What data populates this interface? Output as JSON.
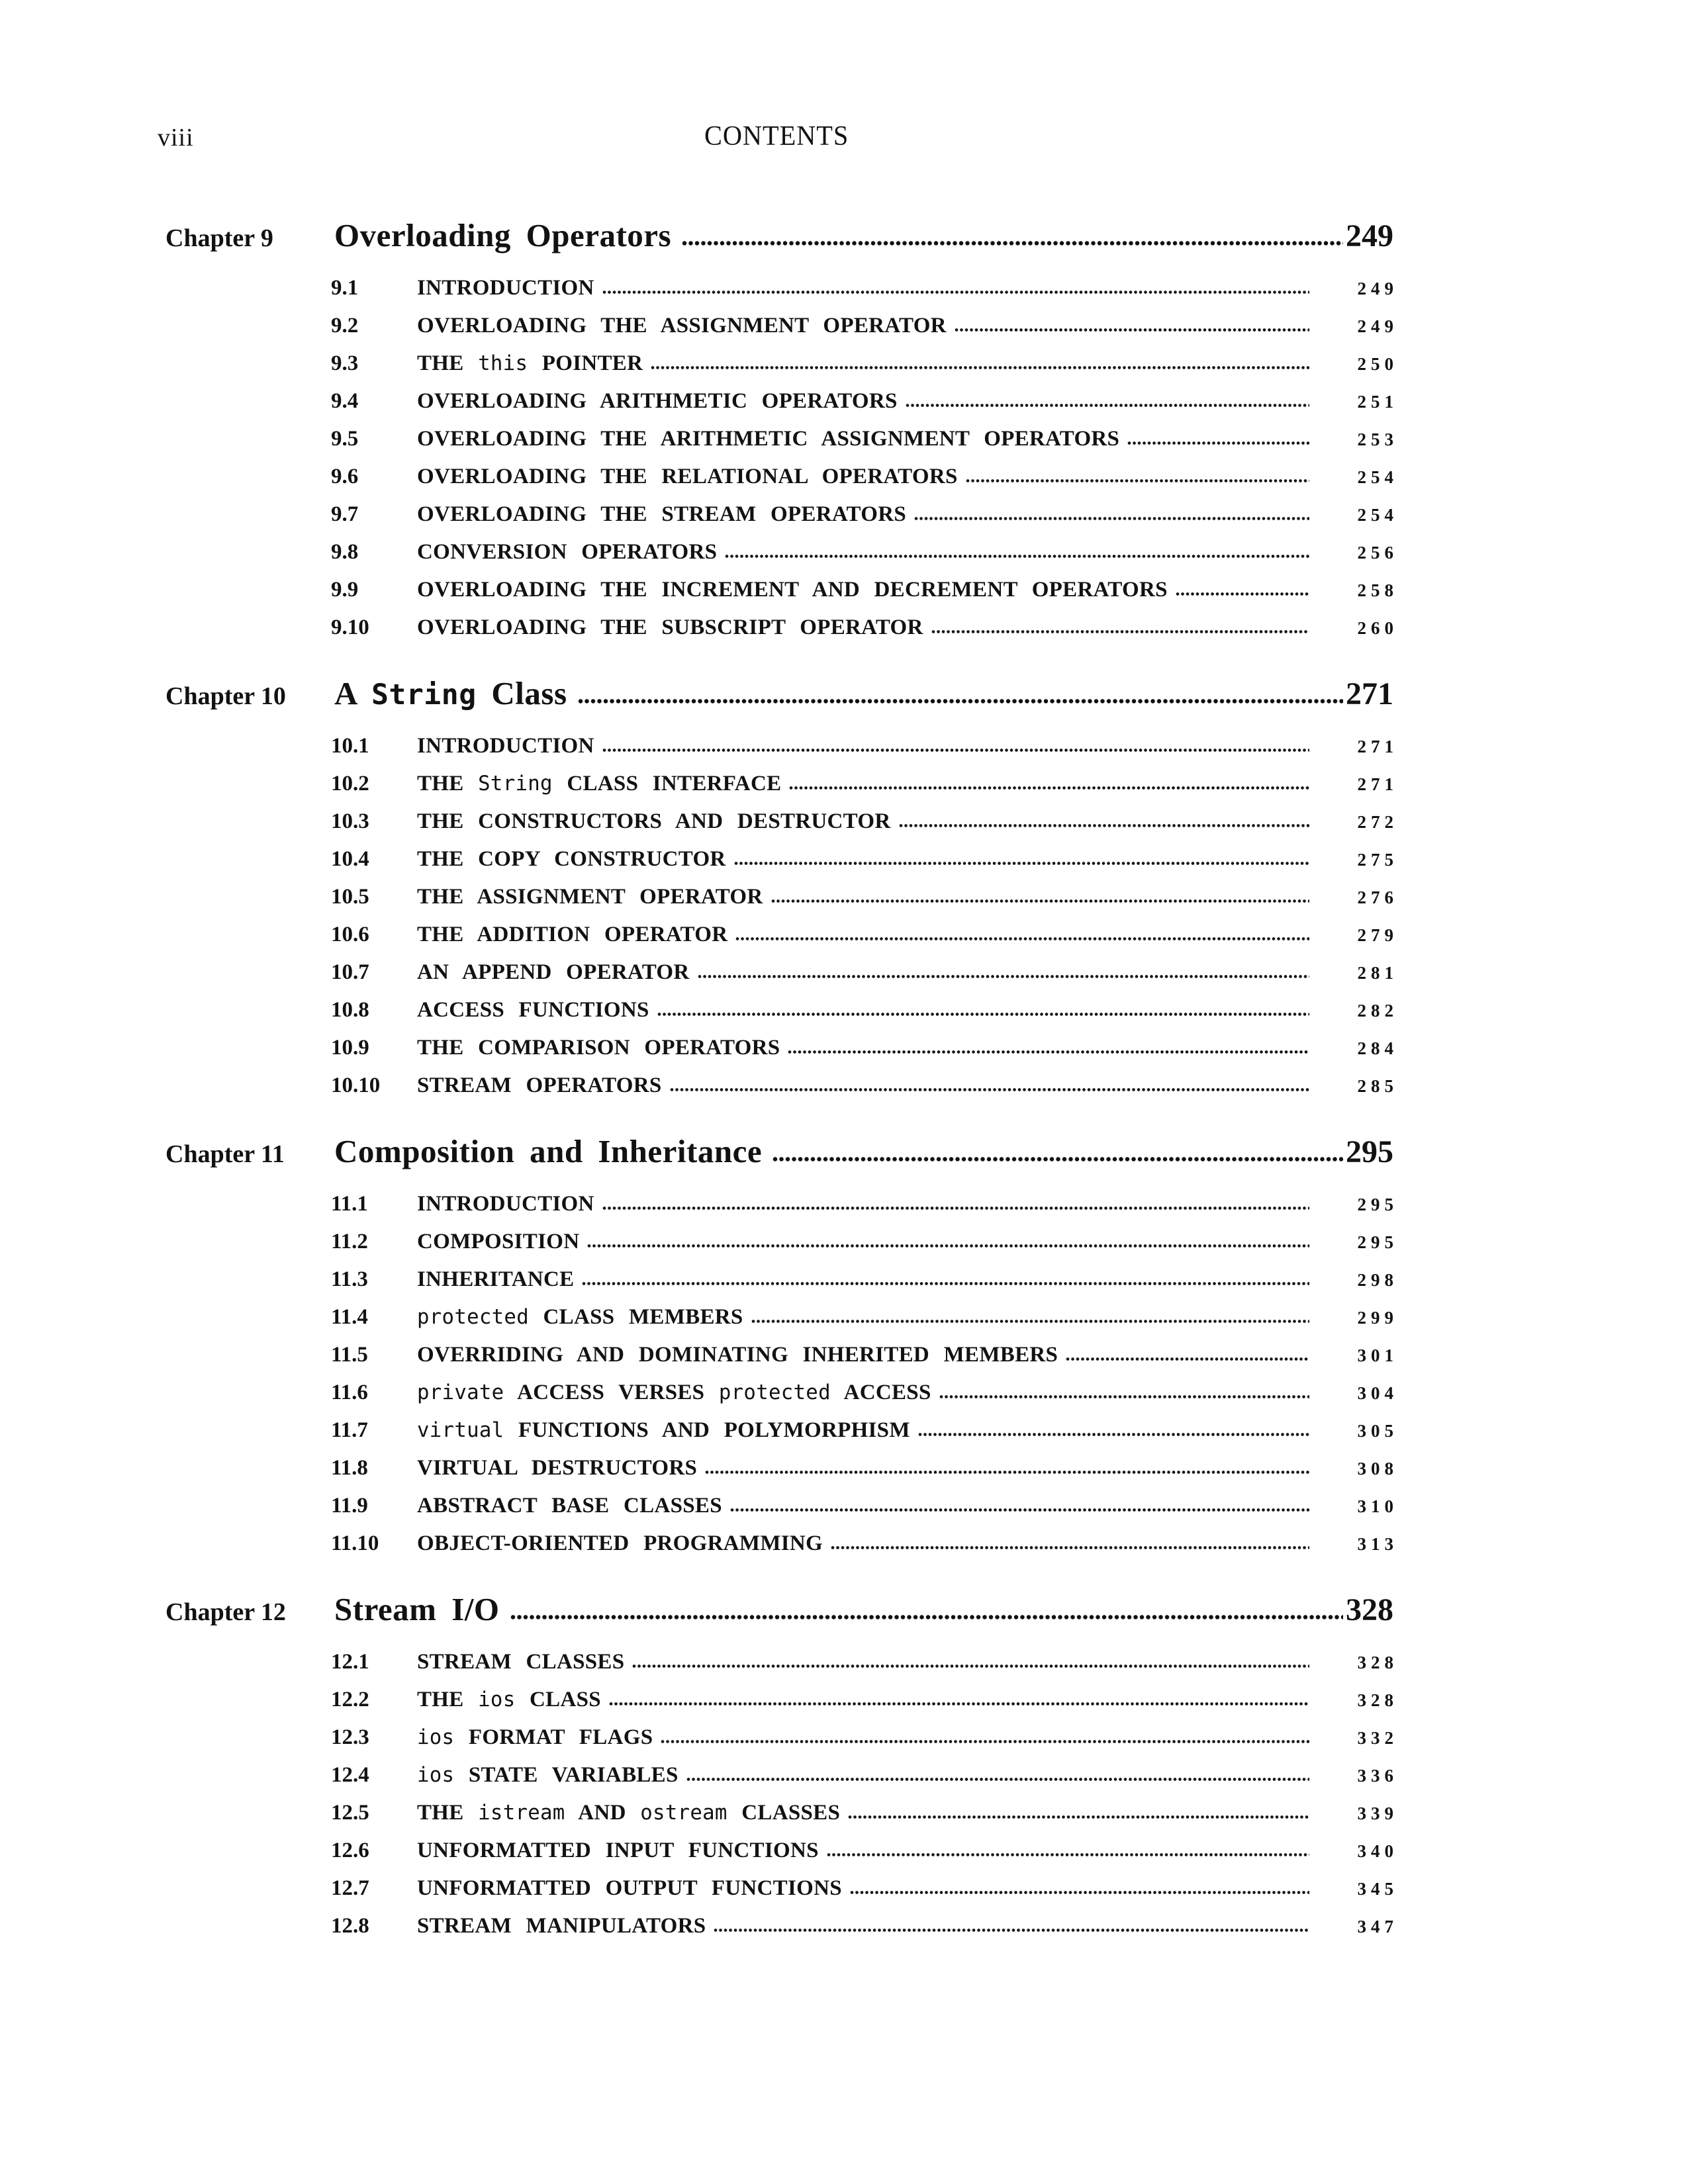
{
  "page": {
    "folio": "viii",
    "running_head": "CONTENTS"
  },
  "chapters": [
    {
      "label": "Chapter 9",
      "title_parts": [
        {
          "t": "Overloading Operators",
          "m": false
        }
      ],
      "page": "249",
      "sections": [
        {
          "num": "9.1",
          "parts": [
            {
              "t": "INTRODUCTION",
              "m": false
            }
          ],
          "page": "249"
        },
        {
          "num": "9.2",
          "parts": [
            {
              "t": "OVERLOADING THE ASSIGNMENT OPERATOR",
              "m": false
            }
          ],
          "page": "249"
        },
        {
          "num": "9.3",
          "parts": [
            {
              "t": "THE ",
              "m": false
            },
            {
              "t": "this",
              "m": true
            },
            {
              "t": " POINTER",
              "m": false
            }
          ],
          "page": "250"
        },
        {
          "num": "9.4",
          "parts": [
            {
              "t": "OVERLOADING ARITHMETIC OPERATORS",
              "m": false
            }
          ],
          "page": "251"
        },
        {
          "num": "9.5",
          "parts": [
            {
              "t": "OVERLOADING THE ARITHMETIC ASSIGNMENT OPERATORS",
              "m": false
            }
          ],
          "page": "253"
        },
        {
          "num": "9.6",
          "parts": [
            {
              "t": "OVERLOADING THE RELATIONAL OPERATORS",
              "m": false
            }
          ],
          "page": "254"
        },
        {
          "num": "9.7",
          "parts": [
            {
              "t": "OVERLOADING THE STREAM OPERATORS",
              "m": false
            }
          ],
          "page": "254"
        },
        {
          "num": "9.8",
          "parts": [
            {
              "t": "CONVERSION OPERATORS",
              "m": false
            }
          ],
          "page": "256"
        },
        {
          "num": "9.9",
          "parts": [
            {
              "t": "OVERLOADING THE INCREMENT AND DECREMENT OPERATORS",
              "m": false
            }
          ],
          "page": "258"
        },
        {
          "num": "9.10",
          "parts": [
            {
              "t": "OVERLOADING THE SUBSCRIPT OPERATOR",
              "m": false
            }
          ],
          "page": "260"
        }
      ]
    },
    {
      "label": "Chapter 10",
      "title_parts": [
        {
          "t": "A ",
          "m": false
        },
        {
          "t": "String",
          "m": true
        },
        {
          "t": " Class",
          "m": false
        }
      ],
      "page": "271",
      "sections": [
        {
          "num": "10.1",
          "parts": [
            {
              "t": "INTRODUCTION",
              "m": false
            }
          ],
          "page": "271"
        },
        {
          "num": "10.2",
          "parts": [
            {
              "t": "THE ",
              "m": false
            },
            {
              "t": "String",
              "m": true
            },
            {
              "t": " CLASS INTERFACE",
              "m": false
            }
          ],
          "page": "271"
        },
        {
          "num": "10.3",
          "parts": [
            {
              "t": "THE CONSTRUCTORS AND DESTRUCTOR",
              "m": false
            }
          ],
          "page": "272"
        },
        {
          "num": "10.4",
          "parts": [
            {
              "t": "THE COPY CONSTRUCTOR",
              "m": false
            }
          ],
          "page": "275"
        },
        {
          "num": "10.5",
          "parts": [
            {
              "t": "THE ASSIGNMENT OPERATOR",
              "m": false
            }
          ],
          "page": "276"
        },
        {
          "num": "10.6",
          "parts": [
            {
              "t": "THE ADDITION OPERATOR",
              "m": false
            }
          ],
          "page": "279"
        },
        {
          "num": "10.7",
          "parts": [
            {
              "t": "AN APPEND OPERATOR",
              "m": false
            }
          ],
          "page": "281"
        },
        {
          "num": "10.8",
          "parts": [
            {
              "t": "ACCESS FUNCTIONS",
              "m": false
            }
          ],
          "page": "282"
        },
        {
          "num": "10.9",
          "parts": [
            {
              "t": "THE COMPARISON OPERATORS",
              "m": false
            }
          ],
          "page": "284"
        },
        {
          "num": "10.10",
          "parts": [
            {
              "t": "STREAM OPERATORS",
              "m": false
            }
          ],
          "page": "285"
        }
      ]
    },
    {
      "label": "Chapter 11",
      "title_parts": [
        {
          "t": "Composition and Inheritance",
          "m": false
        }
      ],
      "page": "295",
      "sections": [
        {
          "num": "11.1",
          "parts": [
            {
              "t": "INTRODUCTION",
              "m": false
            }
          ],
          "page": "295"
        },
        {
          "num": "11.2",
          "parts": [
            {
              "t": "COMPOSITION",
              "m": false
            }
          ],
          "page": "295"
        },
        {
          "num": "11.3",
          "parts": [
            {
              "t": "INHERITANCE",
              "m": false
            }
          ],
          "page": "298"
        },
        {
          "num": "11.4",
          "parts": [
            {
              "t": "protected",
              "m": true
            },
            {
              "t": " CLASS MEMBERS",
              "m": false
            }
          ],
          "page": "299"
        },
        {
          "num": "11.5",
          "parts": [
            {
              "t": "OVERRIDING AND DOMINATING INHERITED MEMBERS",
              "m": false
            }
          ],
          "page": "301"
        },
        {
          "num": "11.6",
          "parts": [
            {
              "t": "private",
              "m": true
            },
            {
              "t": " ACCESS VERSES ",
              "m": false
            },
            {
              "t": "protected",
              "m": true
            },
            {
              "t": " ACCESS",
              "m": false
            }
          ],
          "page": "304"
        },
        {
          "num": "11.7",
          "parts": [
            {
              "t": "virtual",
              "m": true
            },
            {
              "t": " FUNCTIONS AND POLYMORPHISM",
              "m": false
            }
          ],
          "page": "305"
        },
        {
          "num": "11.8",
          "parts": [
            {
              "t": "VIRTUAL DESTRUCTORS",
              "m": false
            }
          ],
          "page": "308"
        },
        {
          "num": "11.9",
          "parts": [
            {
              "t": "ABSTRACT BASE CLASSES",
              "m": false
            }
          ],
          "page": "310"
        },
        {
          "num": "11.10",
          "parts": [
            {
              "t": "OBJECT-ORIENTED PROGRAMMING",
              "m": false
            }
          ],
          "page": "313"
        }
      ]
    },
    {
      "label": "Chapter 12",
      "title_parts": [
        {
          "t": "Stream I/O",
          "m": false
        }
      ],
      "page": "328",
      "sections": [
        {
          "num": "12.1",
          "parts": [
            {
              "t": "STREAM CLASSES",
              "m": false
            }
          ],
          "page": "328"
        },
        {
          "num": "12.2",
          "parts": [
            {
              "t": "THE ",
              "m": false
            },
            {
              "t": "ios",
              "m": true
            },
            {
              "t": " CLASS",
              "m": false
            }
          ],
          "page": "328"
        },
        {
          "num": "12.3",
          "parts": [
            {
              "t": "ios",
              "m": true
            },
            {
              "t": " FORMAT FLAGS",
              "m": false
            }
          ],
          "page": "332"
        },
        {
          "num": "12.4",
          "parts": [
            {
              "t": "ios",
              "m": true
            },
            {
              "t": " STATE VARIABLES",
              "m": false
            }
          ],
          "page": "336"
        },
        {
          "num": "12.5",
          "parts": [
            {
              "t": "THE ",
              "m": false
            },
            {
              "t": "istream",
              "m": true
            },
            {
              "t": " AND ",
              "m": false
            },
            {
              "t": "ostream",
              "m": true
            },
            {
              "t": " CLASSES",
              "m": false
            }
          ],
          "page": "339"
        },
        {
          "num": "12.6",
          "parts": [
            {
              "t": "UNFORMATTED INPUT FUNCTIONS",
              "m": false
            }
          ],
          "page": "340"
        },
        {
          "num": "12.7",
          "parts": [
            {
              "t": "UNFORMATTED OUTPUT FUNCTIONS",
              "m": false
            }
          ],
          "page": "345"
        },
        {
          "num": "12.8",
          "parts": [
            {
              "t": "STREAM MANIPULATORS",
              "m": false
            }
          ],
          "page": "347"
        }
      ]
    }
  ]
}
